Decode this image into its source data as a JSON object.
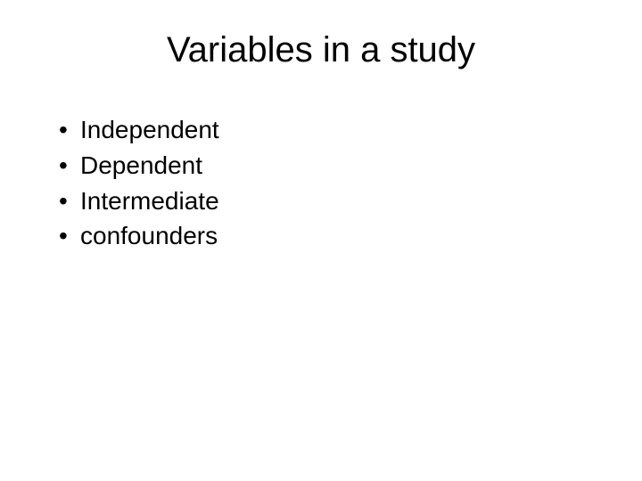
{
  "slide": {
    "title": "Variables in a study",
    "bullets": [
      {
        "marker": "•",
        "text": "Independent"
      },
      {
        "marker": "•",
        "text": "Dependent"
      },
      {
        "marker": "•",
        "text": "Intermediate"
      },
      {
        "marker": "•",
        "text": "confounders"
      }
    ],
    "title_fontsize": 40,
    "bullet_fontsize": 28,
    "text_color": "#000000",
    "background_color": "#ffffff",
    "font_family": "Arial"
  }
}
